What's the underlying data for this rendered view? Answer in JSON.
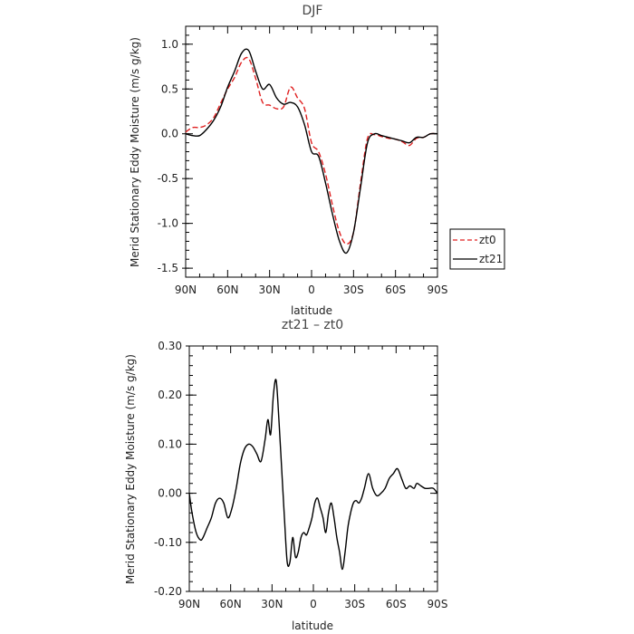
{
  "chart_data": [
    {
      "type": "line",
      "title": "DJF",
      "xlabel": "latitude",
      "ylabel": "Merid Stationary Eddy Moisture (m/s g/kg)",
      "x_ticks": [
        -90,
        -60,
        -30,
        0,
        30,
        60,
        90
      ],
      "x_tick_labels": [
        "90N",
        "60N",
        "30N",
        "0",
        "30S",
        "60S",
        "90S"
      ],
      "xlim": [
        -90,
        90
      ],
      "ylim": [
        -1.6,
        1.2
      ],
      "y_ticks": [
        1.0,
        0.5,
        0.0,
        -0.5,
        -1.0,
        -1.5
      ],
      "y_tick_labels": [
        "1.0",
        "0.5",
        "0.0",
        "-0.5",
        "-1.0",
        "-1.5"
      ],
      "legend_position": "right",
      "series": [
        {
          "name": "zt0",
          "color": "#e02020",
          "style": "dashed",
          "x": [
            -90,
            -85,
            -80,
            -75,
            -70,
            -65,
            -60,
            -55,
            -50,
            -45,
            -40,
            -35,
            -30,
            -25,
            -20,
            -15,
            -10,
            -5,
            0,
            5,
            10,
            15,
            20,
            25,
            30,
            35,
            40,
            45,
            50,
            55,
            60,
            65,
            70,
            75,
            80,
            85,
            90
          ],
          "values": [
            0.02,
            0.07,
            0.07,
            0.1,
            0.18,
            0.34,
            0.5,
            0.63,
            0.8,
            0.84,
            0.62,
            0.35,
            0.32,
            0.28,
            0.3,
            0.52,
            0.4,
            0.28,
            -0.1,
            -0.2,
            -0.45,
            -0.8,
            -1.1,
            -1.23,
            -1.1,
            -0.55,
            -0.05,
            -0.01,
            -0.03,
            -0.05,
            -0.06,
            -0.09,
            -0.13,
            -0.05,
            -0.04,
            0.0,
            0.0
          ]
        },
        {
          "name": "zt21",
          "color": "#000000",
          "style": "solid",
          "x": [
            -90,
            -85,
            -80,
            -75,
            -70,
            -65,
            -60,
            -55,
            -50,
            -45,
            -40,
            -35,
            -30,
            -25,
            -20,
            -15,
            -10,
            -5,
            0,
            5,
            10,
            15,
            20,
            25,
            30,
            35,
            40,
            45,
            50,
            55,
            60,
            65,
            70,
            75,
            80,
            85,
            90
          ],
          "values": [
            0.0,
            -0.02,
            -0.02,
            0.05,
            0.15,
            0.3,
            0.52,
            0.7,
            0.9,
            0.93,
            0.7,
            0.5,
            0.55,
            0.4,
            0.33,
            0.35,
            0.3,
            0.1,
            -0.2,
            -0.25,
            -0.55,
            -0.9,
            -1.2,
            -1.33,
            -1.1,
            -0.6,
            -0.1,
            0.0,
            -0.02,
            -0.04,
            -0.06,
            -0.08,
            -0.1,
            -0.04,
            -0.04,
            0.0,
            0.0
          ]
        }
      ]
    },
    {
      "type": "line",
      "title": "zt21 – zt0",
      "xlabel": "latitude",
      "ylabel": "Merid Stationary Eddy Moisture (m/s g/kg)",
      "x_ticks": [
        -90,
        -60,
        -30,
        0,
        30,
        60,
        90
      ],
      "x_tick_labels": [
        "90N",
        "60N",
        "30N",
        "0",
        "30S",
        "60S",
        "90S"
      ],
      "xlim": [
        -90,
        90
      ],
      "ylim": [
        -0.2,
        0.3
      ],
      "y_ticks": [
        0.3,
        0.2,
        0.1,
        0.0,
        -0.1,
        -0.2
      ],
      "y_tick_labels": [
        "0.30",
        "0.20",
        "0.10",
        "0.00",
        "-0.10",
        "-0.20"
      ],
      "series": [
        {
          "color": "#000000",
          "style": "solid",
          "x": [
            -90,
            -88,
            -85,
            -82,
            -80,
            -77,
            -74,
            -71,
            -68,
            -65,
            -62,
            -59,
            -56,
            -53,
            -50,
            -47,
            -44,
            -41,
            -38,
            -35,
            -33,
            -31,
            -29,
            -27,
            -25,
            -23,
            -21,
            -19,
            -17,
            -15,
            -13,
            -11,
            -9,
            -7,
            -5,
            -3,
            -1,
            1,
            3,
            5,
            7,
            9,
            11,
            13,
            15,
            17,
            19,
            21,
            23,
            25,
            27,
            29,
            31,
            33,
            35,
            37,
            40,
            43,
            46,
            49,
            52,
            55,
            58,
            61,
            64,
            67,
            70,
            73,
            75,
            78,
            81,
            84,
            87,
            90
          ],
          "values": [
            0.0,
            -0.04,
            -0.08,
            -0.095,
            -0.09,
            -0.07,
            -0.05,
            -0.02,
            -0.01,
            -0.02,
            -0.05,
            -0.03,
            0.01,
            0.06,
            0.09,
            0.1,
            0.095,
            0.08,
            0.065,
            0.11,
            0.15,
            0.12,
            0.2,
            0.23,
            0.15,
            0.05,
            -0.05,
            -0.14,
            -0.14,
            -0.09,
            -0.13,
            -0.12,
            -0.09,
            -0.08,
            -0.085,
            -0.07,
            -0.05,
            -0.02,
            -0.01,
            -0.03,
            -0.05,
            -0.08,
            -0.04,
            -0.02,
            -0.05,
            -0.09,
            -0.12,
            -0.155,
            -0.12,
            -0.07,
            -0.04,
            -0.02,
            -0.015,
            -0.02,
            -0.01,
            0.01,
            0.04,
            0.01,
            -0.005,
            0.0,
            0.01,
            0.03,
            0.04,
            0.05,
            0.03,
            0.01,
            0.015,
            0.01,
            0.02,
            0.015,
            0.01,
            0.01,
            0.01,
            0.0
          ]
        }
      ]
    }
  ]
}
